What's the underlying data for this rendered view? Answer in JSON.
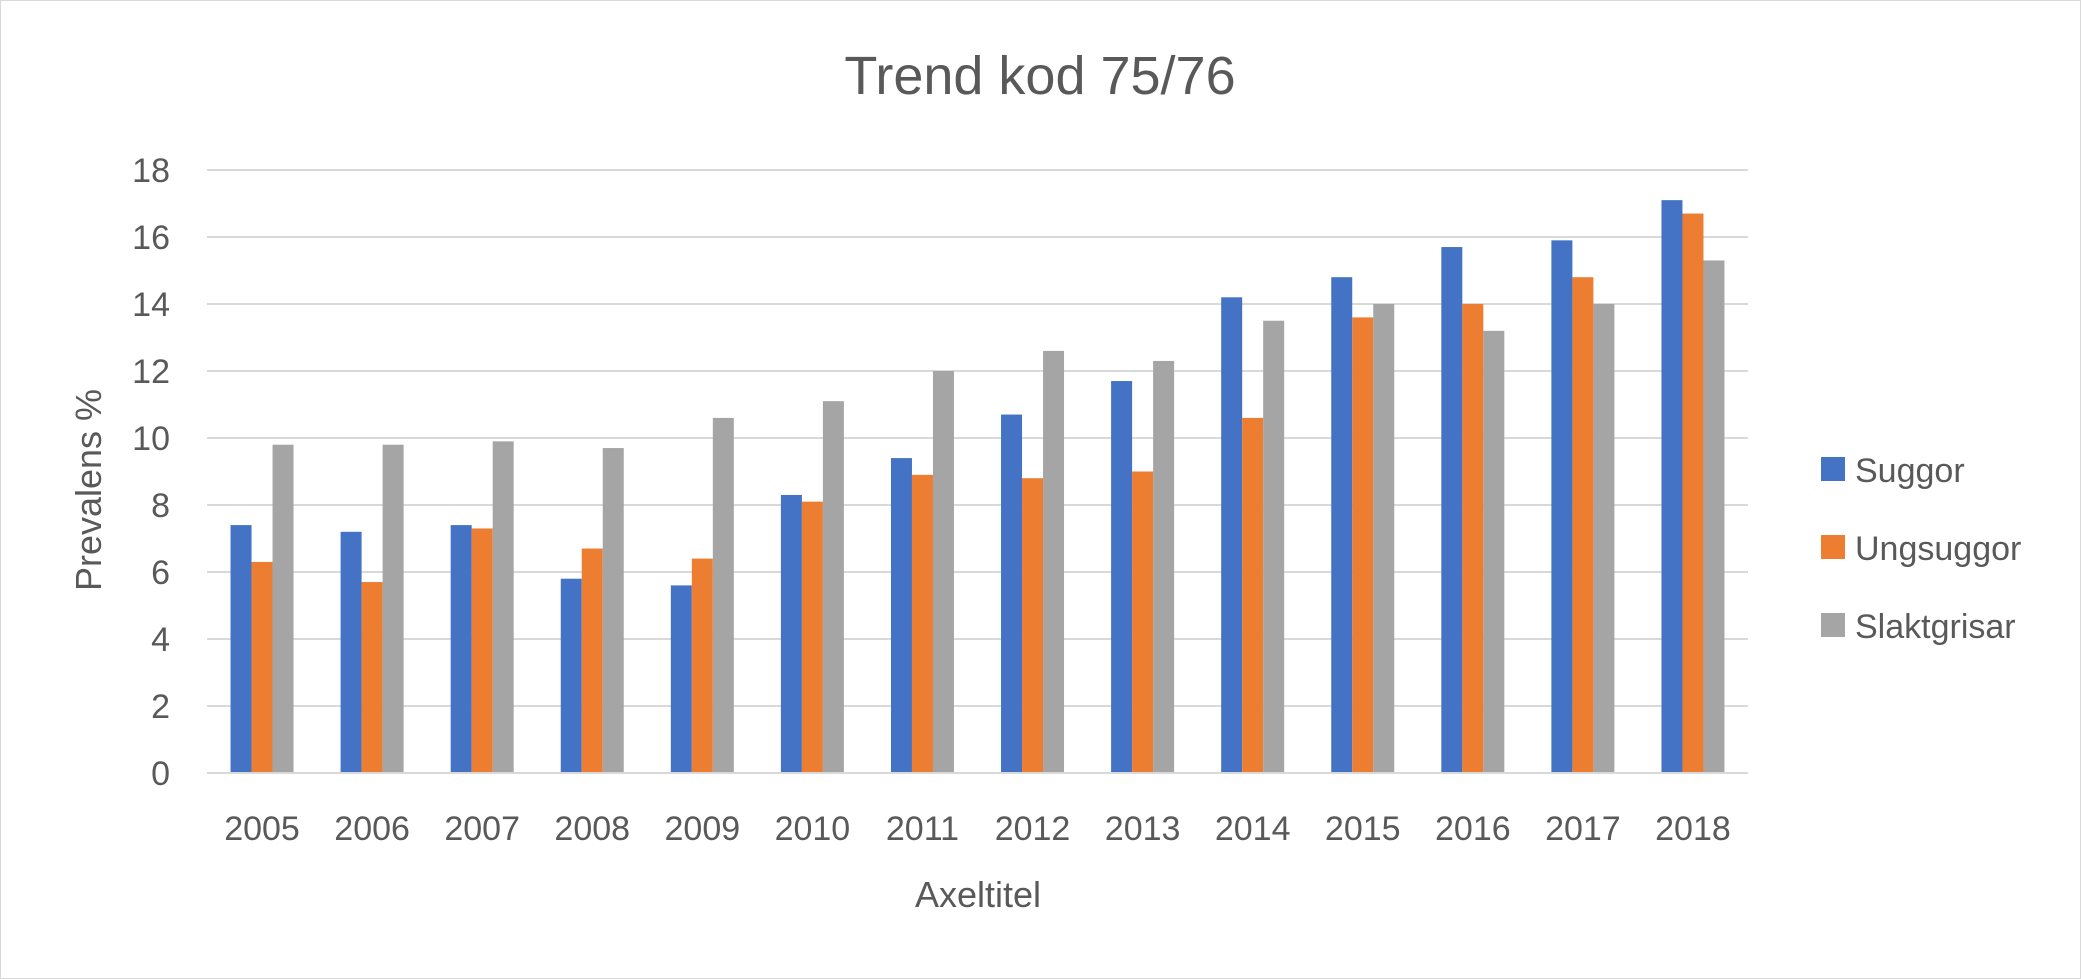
{
  "chart_data": {
    "type": "bar",
    "title": "Trend kod 75/76",
    "xlabel": "Axeltitel",
    "ylabel": "Prevalens %",
    "ylim": [
      0,
      18
    ],
    "yticks": [
      0,
      2,
      4,
      6,
      8,
      10,
      12,
      14,
      16,
      18
    ],
    "grid": true,
    "legend_position": "right",
    "categories": [
      "2005",
      "2006",
      "2007",
      "2008",
      "2009",
      "2010",
      "2011",
      "2012",
      "2013",
      "2014",
      "2015",
      "2016",
      "2017",
      "2018"
    ],
    "series": [
      {
        "name": "Suggor",
        "color": "#4472c4",
        "values": [
          7.4,
          7.2,
          7.4,
          5.8,
          5.6,
          8.3,
          9.4,
          10.7,
          11.7,
          14.2,
          14.8,
          15.7,
          15.9,
          17.1
        ]
      },
      {
        "name": "Ungsuggor",
        "color": "#ed7d31",
        "values": [
          6.3,
          5.7,
          7.3,
          6.7,
          6.4,
          8.1,
          8.9,
          8.8,
          9.0,
          10.6,
          13.6,
          14.0,
          14.8,
          16.7
        ]
      },
      {
        "name": "Slaktgrisar",
        "color": "#a5a5a5",
        "values": [
          9.8,
          9.8,
          9.9,
          9.7,
          10.6,
          11.1,
          12.0,
          12.6,
          12.3,
          13.5,
          14.0,
          13.2,
          14.0,
          15.3
        ]
      }
    ]
  }
}
